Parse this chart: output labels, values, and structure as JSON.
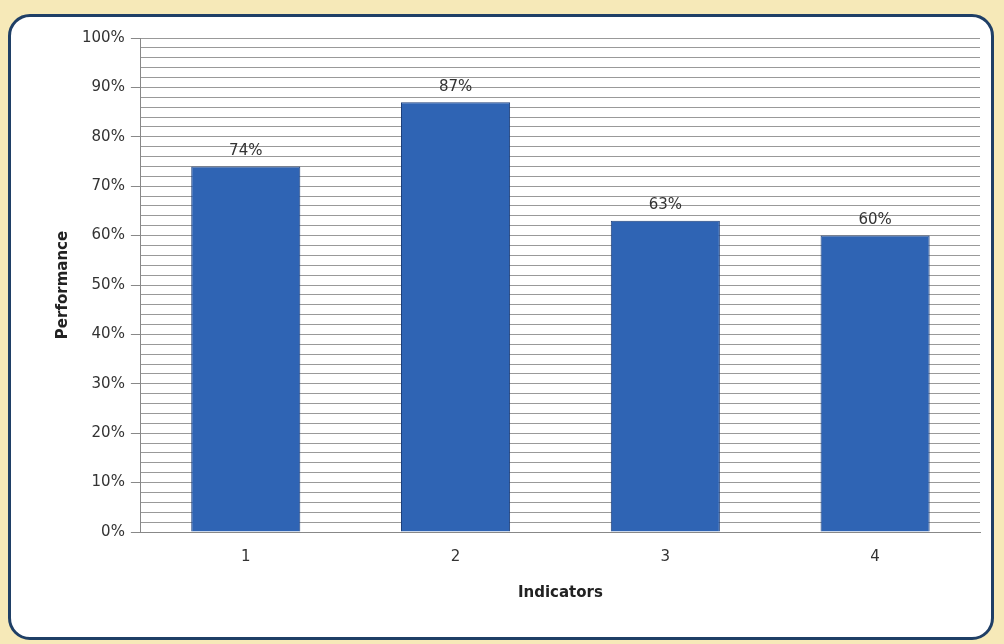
{
  "chart_data": {
    "type": "bar",
    "xlabel": "Indicators",
    "ylabel": "Performance",
    "categories": [
      "1",
      "2",
      "3",
      "4"
    ],
    "values": [
      74,
      87,
      63,
      60
    ],
    "value_labels": [
      "74%",
      "87%",
      "63%",
      "60%"
    ],
    "color": "#2f64b4",
    "ylim": [
      0,
      100
    ],
    "yticks": [
      {
        "value": 0,
        "label": "0%"
      },
      {
        "value": 2,
        "label": null
      },
      {
        "value": 4,
        "label": null
      },
      {
        "value": 6,
        "label": null
      },
      {
        "value": 8,
        "label": null
      },
      {
        "value": 10,
        "label": "10%"
      },
      {
        "value": 12,
        "label": null
      },
      {
        "value": 14,
        "label": null
      },
      {
        "value": 16,
        "label": null
      },
      {
        "value": 18,
        "label": null
      },
      {
        "value": 20,
        "label": "20%"
      },
      {
        "value": 22,
        "label": null
      },
      {
        "value": 24,
        "label": null
      },
      {
        "value": 26,
        "label": null
      },
      {
        "value": 28,
        "label": null
      },
      {
        "value": 30,
        "label": "30%"
      },
      {
        "value": 32,
        "label": null
      },
      {
        "value": 34,
        "label": null
      },
      {
        "value": 36,
        "label": null
      },
      {
        "value": 38,
        "label": null
      },
      {
        "value": 40,
        "label": "40%"
      },
      {
        "value": 42,
        "label": null
      },
      {
        "value": 44,
        "label": null
      },
      {
        "value": 46,
        "label": null
      },
      {
        "value": 48,
        "label": null
      },
      {
        "value": 50,
        "label": "50%"
      },
      {
        "value": 52,
        "label": null
      },
      {
        "value": 54,
        "label": null
      },
      {
        "value": 56,
        "label": null
      },
      {
        "value": 58,
        "label": null
      },
      {
        "value": 60,
        "label": "60%"
      },
      {
        "value": 62,
        "label": null
      },
      {
        "value": 64,
        "label": null
      },
      {
        "value": 66,
        "label": null
      },
      {
        "value": 68,
        "label": null
      },
      {
        "value": 70,
        "label": "70%"
      },
      {
        "value": 72,
        "label": null
      },
      {
        "value": 74,
        "label": null
      },
      {
        "value": 76,
        "label": null
      },
      {
        "value": 78,
        "label": null
      },
      {
        "value": 80,
        "label": "80%"
      },
      {
        "value": 82,
        "label": null
      },
      {
        "value": 84,
        "label": null
      },
      {
        "value": 86,
        "label": null
      },
      {
        "value": 88,
        "label": null
      },
      {
        "value": 90,
        "label": "90%"
      },
      {
        "value": 92,
        "label": null
      },
      {
        "value": 94,
        "label": null
      },
      {
        "value": 96,
        "label": null
      },
      {
        "value": 98,
        "label": null
      },
      {
        "value": 100,
        "label": "100%"
      }
    ],
    "grid": "y",
    "legend": false
  }
}
